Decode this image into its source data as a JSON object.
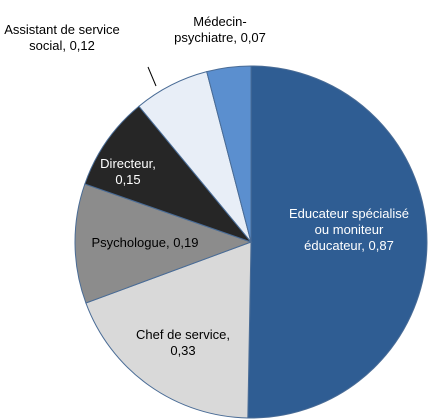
{
  "chart_data": {
    "type": "pie",
    "categories": [
      "Educateur spécialisé ou moniteur éducateur,",
      "Chef de service,",
      "Psychologue,",
      "Directeur,",
      "Assistant de service social,",
      "Médecin-psychiatre,"
    ],
    "values": [
      0.87,
      0.33,
      0.19,
      0.15,
      0.12,
      0.07
    ],
    "value_labels": [
      "0,87",
      "0,33",
      "0,19",
      "0,15",
      "0,12",
      "0,07"
    ],
    "colors": [
      "#2f5d93",
      "#d9d9d9",
      "#8c8c8c",
      "#262626",
      "#e8eef7",
      "#5b8fcf"
    ]
  }
}
